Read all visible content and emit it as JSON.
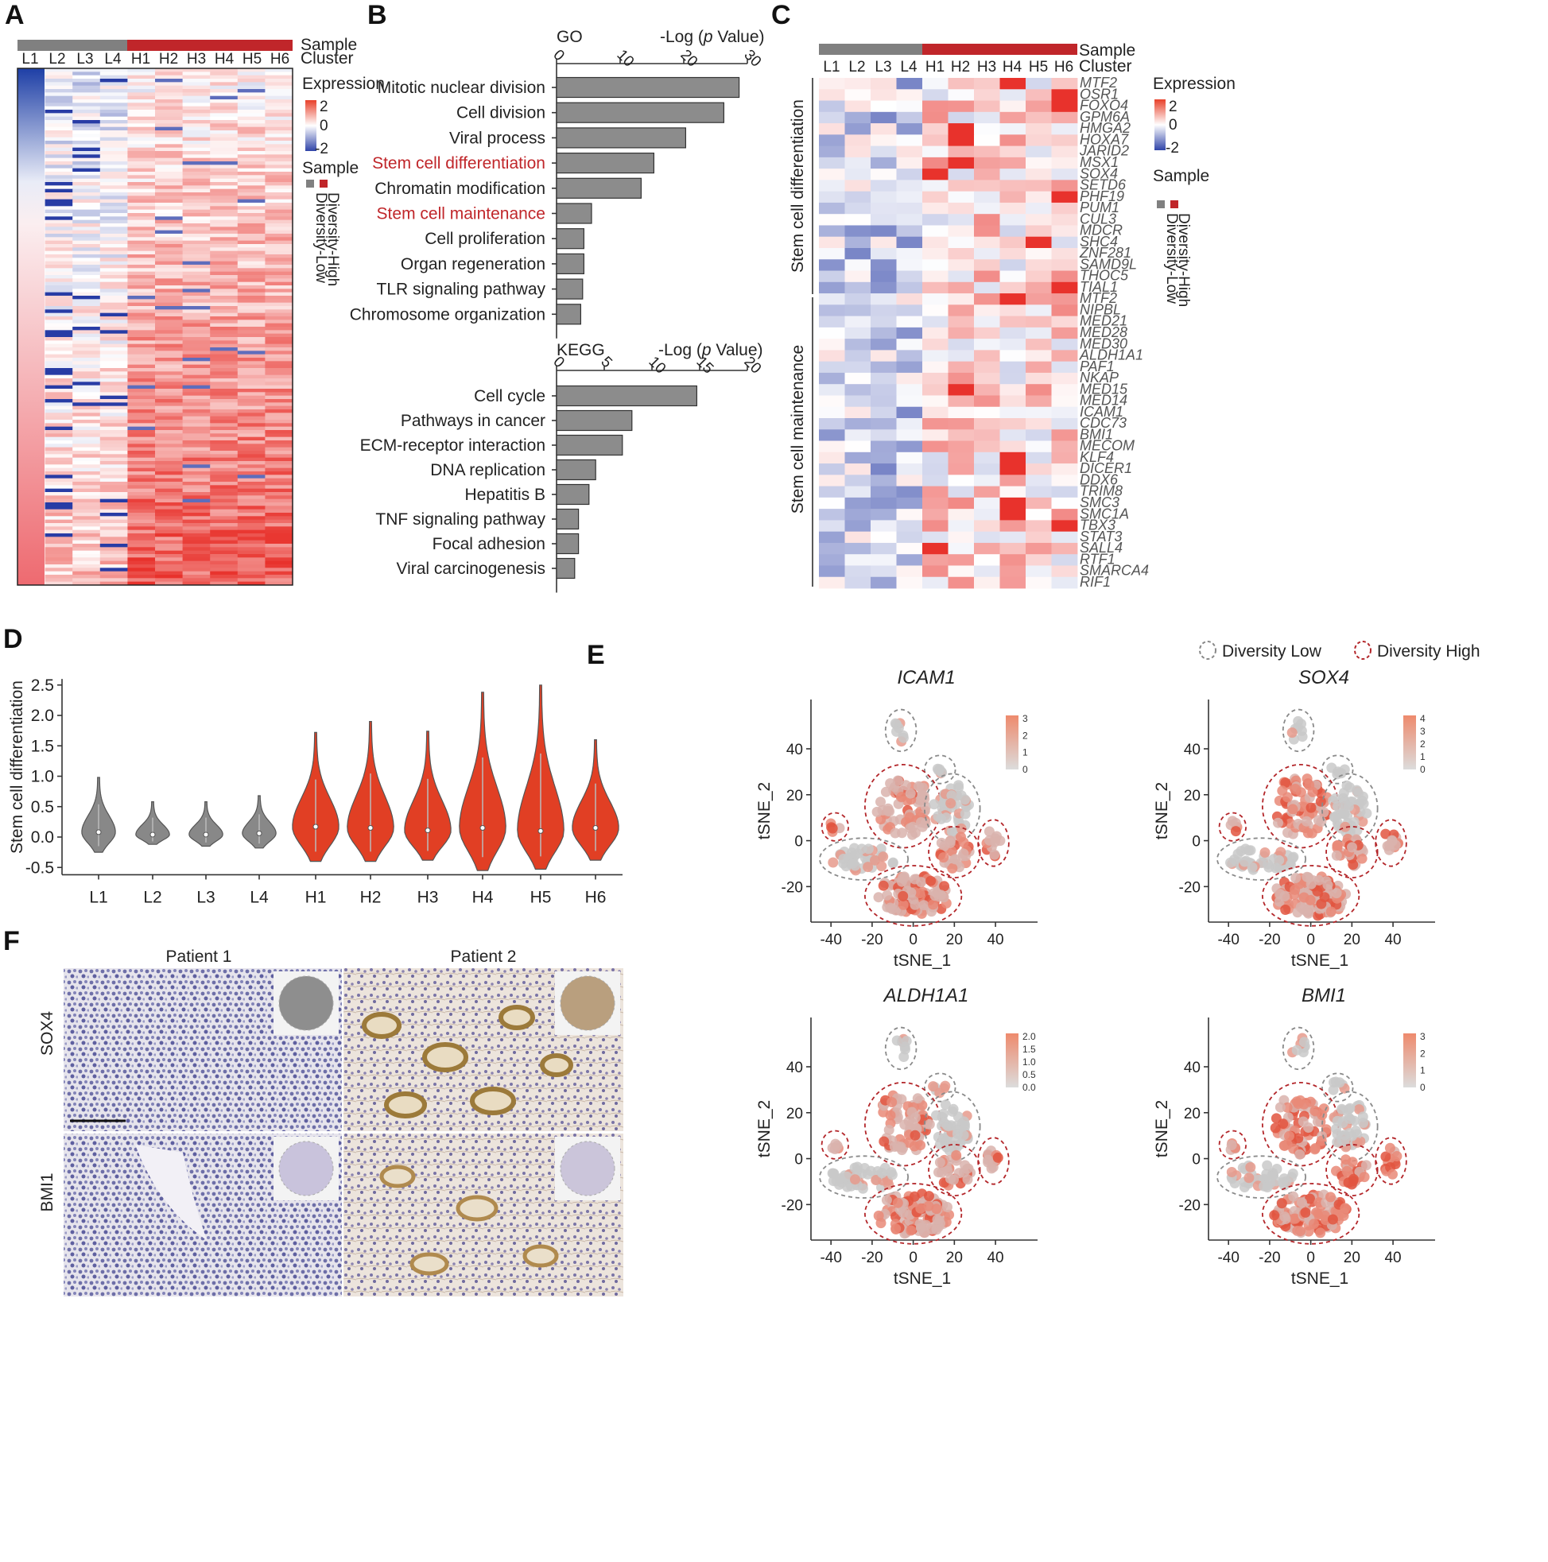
{
  "panels": {
    "A": {
      "label": "A",
      "samples": [
        "L1",
        "L2",
        "L3",
        "L4",
        "H1",
        "H2",
        "H3",
        "H4",
        "H5",
        "H6"
      ],
      "sample_label": "Sample",
      "cluster_label": "Cluster",
      "expression_label": "Expression",
      "scale_ticks": [
        "2",
        "0",
        "-2"
      ],
      "legend_sample_label": "Sample",
      "legend_low": "Diversity-Low",
      "legend_high": "Diversity-High"
    },
    "B": {
      "label": "B",
      "go": {
        "header": "GO",
        "axis_title": "-Log (p Value)",
        "ticks": [
          0,
          10,
          20,
          30
        ],
        "categories": [
          "Mitotic nuclear division",
          "Cell division",
          "Viral process",
          "Stem cell differentiation",
          "Chromatin modification",
          "Stem cell maintenance",
          "Cell proliferation",
          "Organ regeneration",
          "TLR signaling pathway",
          "Chromosome organization"
        ],
        "values": [
          28.7,
          26.3,
          20.3,
          15.3,
          13.3,
          5.5,
          4.3,
          4.3,
          4.1,
          3.8
        ],
        "highlight": [
          3,
          5
        ]
      },
      "kegg": {
        "header": "KEGG",
        "axis_title": "-Log (p Value)",
        "ticks": [
          0,
          5,
          10,
          15,
          20
        ],
        "categories": [
          "Cell cycle",
          "Pathways in cancer",
          "ECM-receptor interaction",
          "DNA replication",
          "Hepatitis B",
          "TNF signaling pathway",
          "Focal adhesion",
          "Viral carcinogenesis"
        ],
        "values": [
          14.7,
          7.9,
          6.9,
          4.1,
          3.4,
          2.3,
          2.3,
          1.9
        ]
      }
    },
    "C": {
      "label": "C",
      "samples": [
        "L1",
        "L2",
        "L3",
        "L4",
        "H1",
        "H2",
        "H3",
        "H4",
        "H5",
        "H6"
      ],
      "sample_label": "Sample",
      "cluster_label": "Cluster",
      "expression_label": "Expression",
      "scale_ticks": [
        "2",
        "0",
        "-2"
      ],
      "legend_sample_label": "Sample",
      "legend_low": "Diversity-Low",
      "legend_high": "Diversity-High",
      "group1": "Stem cell differentiation",
      "group2": "Stem cell maintenance",
      "genes_diff": [
        "MTF2",
        "OSR1",
        "FOXO4",
        "GPM6A",
        "HMGA2",
        "HOXA7",
        "JARID2",
        "MSX1",
        "SOX4",
        "SETD6",
        "PHF19",
        "PUM1",
        "CUL3",
        "MDCR",
        "SHC4",
        "ZNF281",
        "SAMD9L",
        "THOC5",
        "TIAL1"
      ],
      "genes_maint": [
        "MTF2",
        "NIPBL",
        "MED21",
        "MED28",
        "MED30",
        "ALDH1A1",
        "PAF1",
        "NKAP",
        "MED15",
        "MED14",
        "ICAM1",
        "CDC73",
        "BMI1",
        "MECOM",
        "KLF4",
        "DICER1",
        "DDX6",
        "TRIM8",
        "SMC3",
        "SMC1A",
        "TBX3",
        "STAT3",
        "SALL4",
        "RTF1",
        "SMARCA4",
        "RIF1"
      ]
    },
    "D": {
      "label": "D",
      "chart_data": {
        "type": "violin",
        "categories": [
          "L1",
          "L2",
          "L3",
          "L4",
          "H1",
          "H2",
          "H3",
          "H4",
          "H5",
          "H6"
        ],
        "ylabel": "Stem cell differentiation",
        "ylim": [
          -0.55,
          2.55
        ],
        "yticks": [
          "2.5",
          "2.0",
          "1.5",
          "1.0",
          "0.5",
          "0.0",
          "-0.5"
        ],
        "min": [
          -0.25,
          -0.12,
          -0.15,
          -0.18,
          -0.4,
          -0.4,
          -0.38,
          -0.55,
          -0.53,
          -0.38
        ],
        "max": [
          0.98,
          0.58,
          0.58,
          0.68,
          1.72,
          1.9,
          1.74,
          2.38,
          2.5,
          1.6
        ],
        "median": [
          0.08,
          0.04,
          0.04,
          0.06,
          0.17,
          0.15,
          0.11,
          0.15,
          0.1,
          0.15
        ],
        "colors": [
          "#888888",
          "#888888",
          "#888888",
          "#888888",
          "#e13f24",
          "#e13f24",
          "#e13f24",
          "#e13f24",
          "#e13f24",
          "#e13f24"
        ]
      }
    },
    "E": {
      "label": "E",
      "legend_low": "Diversity Low",
      "legend_high": "Diversity High",
      "xlabel": "tSNE_1",
      "ylabel": "tSNE_2",
      "xticks": [
        "-40",
        "-20",
        "0",
        "20",
        "40"
      ],
      "yticks": [
        "40",
        "20",
        "0",
        "-20"
      ],
      "plots": [
        {
          "title": "ICAM1",
          "scale": [
            "3",
            "2",
            "1",
            "0"
          ]
        },
        {
          "title": "SOX4",
          "scale": [
            "4",
            "3",
            "2",
            "1",
            "0"
          ]
        },
        {
          "title": "ALDH1A1",
          "scale": [
            "2.0",
            "1.5",
            "1.0",
            "0.5",
            "0.0"
          ]
        },
        {
          "title": "BMI1",
          "scale": [
            "3",
            "2",
            "1",
            "0"
          ]
        }
      ]
    },
    "F": {
      "label": "F",
      "patient1": "Patient 1",
      "patient2": "Patient 2",
      "row1": "SOX4",
      "row2": "BMI1"
    }
  },
  "colors": {
    "low": "#808080",
    "high": "#c0262a",
    "violin_high": "#e13f24",
    "bar": "#8c8c8c"
  }
}
